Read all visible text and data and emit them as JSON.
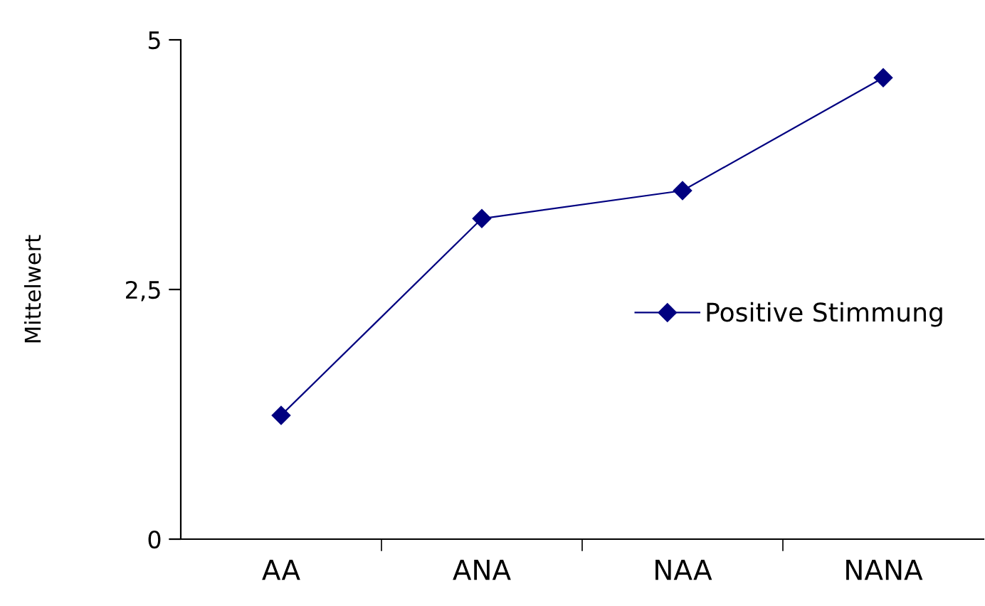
{
  "chart_data": {
    "type": "line",
    "ylabel": "Mittelwert",
    "categories": [
      "AA",
      "ANA",
      "NAA",
      "NANA"
    ],
    "series": [
      {
        "name": "Positive Stimmung",
        "color": "#000080",
        "values": [
          1.24,
          3.21,
          3.49,
          4.62
        ]
      }
    ],
    "ylim": [
      0,
      5
    ],
    "yticks": [
      0,
      {
        "value": 2.5,
        "label": "2,5"
      },
      5
    ],
    "grid": false,
    "legend": "right",
    "marker": "diamond",
    "line_style": "solid"
  }
}
